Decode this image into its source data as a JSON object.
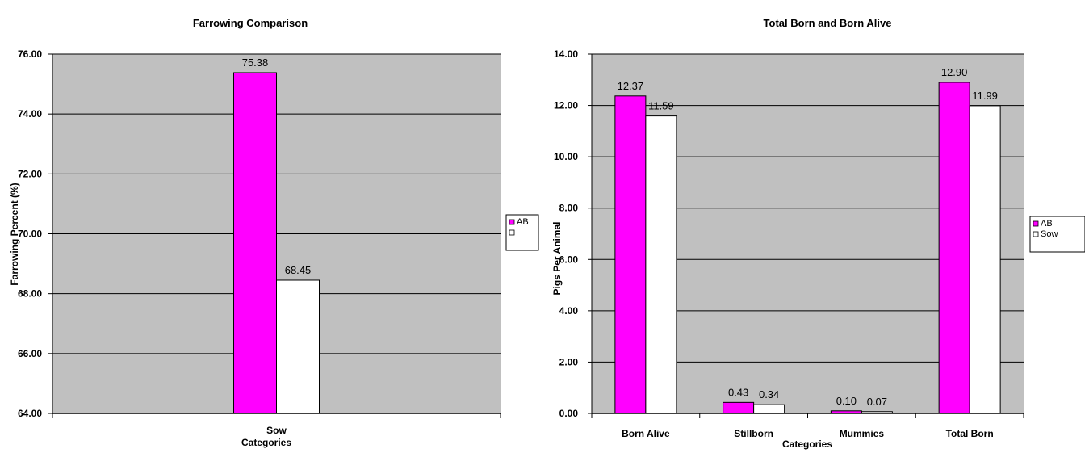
{
  "chart_data": [
    {
      "type": "bar",
      "title": "Farrowing Comparison",
      "xlabel": "Categories",
      "ylabel": "Farrowing Percent (%)",
      "categories": [
        "Sow"
      ],
      "series": [
        {
          "name": "AB",
          "values": [
            75.38
          ],
          "color": "#ff00ff"
        },
        {
          "name": "",
          "values": [
            68.45
          ],
          "color": "#ffffff"
        }
      ],
      "data_labels": [
        [
          "75.38"
        ],
        [
          "68.45"
        ]
      ],
      "y_ticks": [
        "64.00",
        "66.00",
        "68.00",
        "70.00",
        "72.00",
        "74.00",
        "76.00"
      ],
      "ylim": [
        64,
        76
      ],
      "grid": true,
      "plot_background": "#c0c0c0",
      "legend_position": "right"
    },
    {
      "type": "bar",
      "title": "Total Born and Born Alive",
      "xlabel": "Categories",
      "ylabel": "Pigs Per Animal",
      "categories": [
        "Born Alive",
        "Stillborn",
        "Mummies",
        "Total Born"
      ],
      "series": [
        {
          "name": "AB",
          "values": [
            12.37,
            0.43,
            0.1,
            12.9
          ],
          "color": "#ff00ff"
        },
        {
          "name": "Sow",
          "values": [
            11.59,
            0.34,
            0.07,
            11.99
          ],
          "color": "#ffffff"
        }
      ],
      "data_labels": [
        [
          "12.37",
          "0.43",
          "0.10",
          "12.90"
        ],
        [
          "11.59",
          "0.34",
          "0.07",
          "11.99"
        ]
      ],
      "y_ticks": [
        "0.00",
        "2.00",
        "4.00",
        "6.00",
        "8.00",
        "10.00",
        "12.00",
        "14.00"
      ],
      "ylim": [
        0,
        14
      ],
      "grid": true,
      "plot_background": "#c0c0c0",
      "legend_position": "right"
    }
  ]
}
